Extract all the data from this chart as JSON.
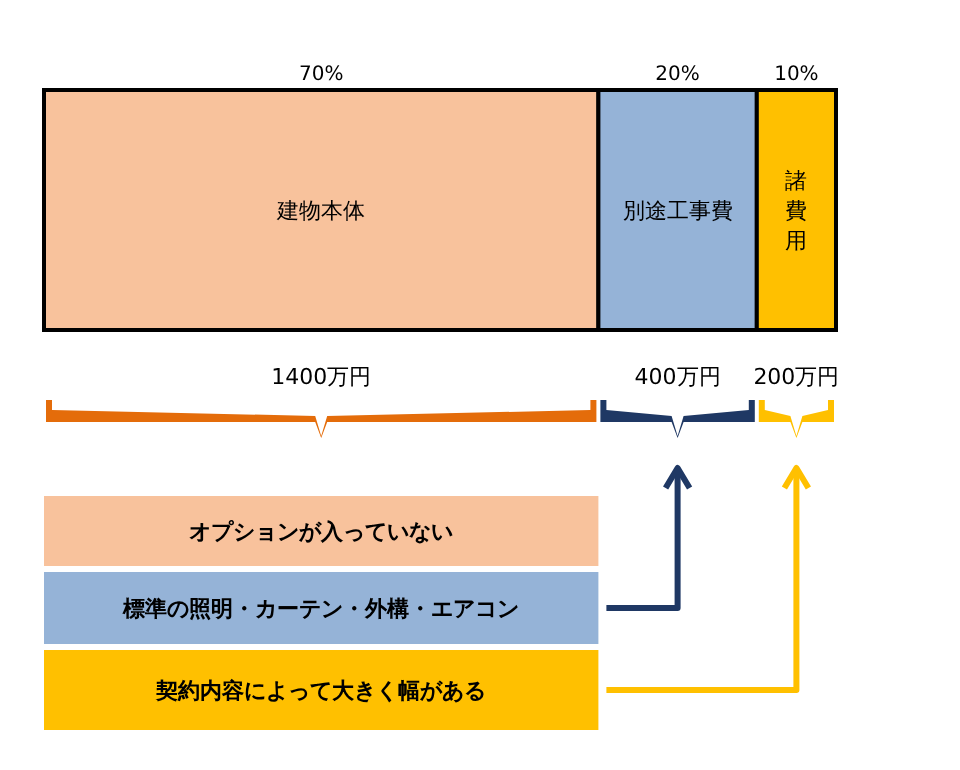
{
  "chart_data": {
    "type": "bar",
    "orientation": "horizontal",
    "stacked": true,
    "categories": [
      null
    ],
    "legend": false,
    "series": [
      {
        "name": "建物本体",
        "color": "#f8c29c",
        "values": [
          70
        ],
        "value_labels": [
          "70%"
        ]
      },
      {
        "name": "別途工事費",
        "color": "#95b3d7",
        "values": [
          20
        ],
        "value_labels": [
          "20%"
        ]
      },
      {
        "name": "諸費用",
        "color": "#ffc000",
        "values": [
          10
        ],
        "value_labels": [
          "10%"
        ]
      }
    ],
    "annotations": [
      "1400万円",
      "400万円",
      "200万円",
      "オプションが入っていない",
      "標準の照明・カーテン・外構・エアコン",
      "契約内容によって大きく幅がある"
    ]
  }
}
